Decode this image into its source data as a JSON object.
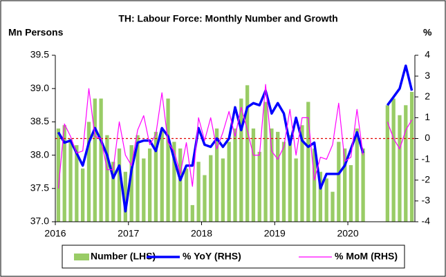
{
  "chart_data": {
    "type": "bar_line",
    "title": "TH: Labour Force: Monthly Number and Growth",
    "y_label": "Mn Persons",
    "y2_label": "%",
    "categories": [
      "2016",
      null,
      null,
      null,
      null,
      null,
      null,
      null,
      null,
      null,
      null,
      null,
      "2017",
      null,
      null,
      null,
      null,
      null,
      null,
      null,
      null,
      null,
      null,
      null,
      "2018",
      null,
      null,
      null,
      null,
      null,
      null,
      null,
      null,
      null,
      null,
      null,
      "2019",
      null,
      null,
      null,
      null,
      null,
      null,
      null,
      null,
      null,
      null,
      null,
      "2020",
      null,
      null,
      null,
      null,
      null,
      null,
      null,
      null,
      null,
      null
    ],
    "series": [
      {
        "name": "Number (LHS)",
        "kind": "bar",
        "axis": "y",
        "color": "#99cc66",
        "values": [
          38.4,
          38.45,
          38.25,
          38.15,
          37.8,
          38.5,
          38.85,
          38.85,
          38.3,
          37.9,
          38.1,
          37.75,
          38.15,
          38.3,
          37.95,
          38.1,
          38.35,
          38.4,
          38.85,
          38.2,
          38.1,
          37.8,
          37.25,
          37.9,
          37.7,
          38.0,
          38.4,
          37.95,
          38.2,
          38.4,
          38.85,
          39.05,
          38.4,
          38.05,
          38.8,
          38.4,
          38.35,
          38.2,
          38.3,
          37.95,
          38.45,
          38.8,
          38.1,
          37.75,
          37.65,
          37.45,
          38.2,
          38.1,
          37.85,
          38.4,
          38.1,
          null,
          null,
          null,
          38.75,
          38.85,
          38.6,
          38.75,
          38.95
        ]
      },
      {
        "name": "% YoY (RHS)",
        "kind": "line",
        "axis": "y2",
        "color": "#0000ff",
        "values": [
          0.3,
          -0.2,
          -0.1,
          -0.7,
          -1.3,
          -0.2,
          0.5,
          -0.1,
          -0.8,
          -1.9,
          -1.3,
          -3.5,
          -1.5,
          -0.2,
          -0.1,
          -0.1,
          -0.6,
          0.5,
          0.1,
          -1.0,
          -2.0,
          -1.3,
          -1.3,
          0.5,
          -0.3,
          -0.4,
          0.0,
          -0.4,
          0.0,
          1.5,
          0.4,
          1.5,
          1.7,
          1.6,
          2.3,
          1.2,
          1.7,
          1.2,
          -0.3,
          1.0,
          -0.1,
          -0.4,
          -0.2,
          -2.4,
          -1.7,
          -1.7,
          -1.7,
          -1.3,
          -0.5,
          0.3,
          -0.7,
          null,
          null,
          null,
          1.6,
          2.0,
          2.4,
          3.5,
          2.3
        ]
      },
      {
        "name": "% MoM (RHS)",
        "kind": "line",
        "axis": "y2",
        "color": "#ff00ff",
        "values": [
          -2.4,
          0.7,
          0.1,
          -0.7,
          -0.6,
          2.4,
          0.1,
          0.0,
          -1.5,
          -1.5,
          0.8,
          -0.8,
          -1.3,
          0.4,
          1.1,
          -0.3,
          0.2,
          2.2,
          -0.2,
          -0.6,
          -1.7,
          -0.2,
          -2.3,
          1.0,
          -0.1,
          1.0,
          -0.5,
          0.3,
          1.3,
          0.1,
          1.5,
          0.4,
          -0.8,
          -0.8,
          2.6,
          -0.6,
          -1.0,
          -0.4,
          1.4,
          -0.8,
          1.0,
          1.0,
          -2.0,
          -0.9,
          -1.0,
          -0.3,
          1.7,
          -1.1,
          -0.9,
          1.4,
          -0.8,
          null,
          null,
          null,
          0.8,
          0.0,
          -0.5,
          0.4,
          0.9
        ]
      }
    ],
    "ylim": [
      37.0,
      39.5
    ],
    "yticks": [
      {
        "value": 37.0,
        "label": "37.0"
      },
      37.5,
      {
        "value": 38.0,
        "label": "38.0"
      },
      38.5,
      {
        "value": 39.0,
        "label": "39.0"
      },
      39.5
    ],
    "y2lim": [
      -4,
      4
    ],
    "y2ticks": [
      -4,
      -3,
      -2,
      -1,
      0,
      1,
      2,
      3,
      4
    ],
    "reference_line": {
      "axis": "y2",
      "value": 0,
      "color": "#e00000"
    },
    "legend": "bottom"
  }
}
